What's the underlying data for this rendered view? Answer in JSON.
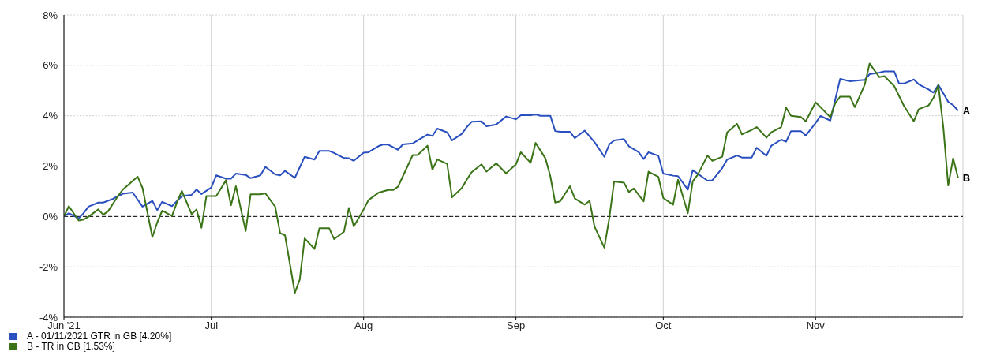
{
  "chart_data": {
    "type": "line",
    "legend": "bottom left",
    "grid": true,
    "line_style": "solid",
    "ylim": [
      -4,
      8
    ],
    "yticks": [
      {
        "value": -4,
        "label": "-4%"
      },
      {
        "value": -2,
        "label": "-2%"
      },
      {
        "value": 0,
        "label": "0%"
      },
      {
        "value": 2,
        "label": "2%"
      },
      {
        "value": 4,
        "label": "4%"
      },
      {
        "value": 6,
        "label": "6%"
      },
      {
        "value": 8,
        "label": "8%"
      }
    ],
    "xlim": [
      "2021-06-01",
      "2021-12-01"
    ],
    "xticks": [
      {
        "value": "2021-06-01",
        "label": "Jun '21"
      },
      {
        "value": "2021-07-01",
        "label": "Jul"
      },
      {
        "value": "2021-08-01",
        "label": "Aug"
      },
      {
        "value": "2021-09-01",
        "label": "Sep"
      },
      {
        "value": "2021-10-01",
        "label": "Oct"
      },
      {
        "value": "2021-11-01",
        "label": "Nov"
      }
    ],
    "ref_lines": [
      {
        "axis": "y",
        "value": 0,
        "color": "#000000",
        "line_style": "dashed"
      }
    ],
    "annotations": [
      {
        "text": "A",
        "x": "2021-11-30",
        "y": 4.2
      },
      {
        "text": "B",
        "x": "2021-11-30",
        "y": 1.53
      }
    ],
    "series": [
      {
        "name": "A - 01/11/2021 GTR in GB [4.20%]",
        "color": "#2a4fbf",
        "x": [
          "2021-06-01",
          "2021-06-02",
          "2021-06-04",
          "2021-06-05",
          "2021-06-06",
          "2021-06-08",
          "2021-06-09",
          "2021-06-11",
          "2021-06-12",
          "2021-06-13",
          "2021-06-15",
          "2021-06-17",
          "2021-06-19",
          "2021-06-20",
          "2021-06-21",
          "2021-06-23",
          "2021-06-25",
          "2021-06-27",
          "2021-06-28",
          "2021-06-29",
          "2021-07-01",
          "2021-07-02",
          "2021-07-04",
          "2021-07-05",
          "2021-07-06",
          "2021-07-08",
          "2021-07-09",
          "2021-07-11",
          "2021-07-12",
          "2021-07-14",
          "2021-07-15",
          "2021-07-16",
          "2021-07-18",
          "2021-07-20",
          "2021-07-22",
          "2021-07-23",
          "2021-07-25",
          "2021-07-26",
          "2021-07-28",
          "2021-07-29",
          "2021-07-30",
          "2021-08-01",
          "2021-08-02",
          "2021-08-04",
          "2021-08-05",
          "2021-08-06",
          "2021-08-08",
          "2021-08-09",
          "2021-08-11",
          "2021-08-12",
          "2021-08-14",
          "2021-08-15",
          "2021-08-16",
          "2021-08-18",
          "2021-08-19",
          "2021-08-21",
          "2021-08-22",
          "2021-08-23",
          "2021-08-25",
          "2021-08-26",
          "2021-08-28",
          "2021-08-30",
          "2021-09-01",
          "2021-09-02",
          "2021-09-04",
          "2021-09-05",
          "2021-09-06",
          "2021-09-08",
          "2021-09-09",
          "2021-09-10",
          "2021-09-12",
          "2021-09-13",
          "2021-09-15",
          "2021-09-16",
          "2021-09-17",
          "2021-09-19",
          "2021-09-20",
          "2021-09-21",
          "2021-09-23",
          "2021-09-24",
          "2021-09-26",
          "2021-09-27",
          "2021-09-28",
          "2021-09-30",
          "2021-10-01",
          "2021-10-03",
          "2021-10-04",
          "2021-10-06",
          "2021-10-07",
          "2021-10-08",
          "2021-10-10",
          "2021-10-11",
          "2021-10-13",
          "2021-10-14",
          "2021-10-16",
          "2021-10-17",
          "2021-10-19",
          "2021-10-20",
          "2021-10-22",
          "2021-10-23",
          "2021-10-25",
          "2021-10-26",
          "2021-10-27",
          "2021-10-29",
          "2021-10-30",
          "2021-11-01",
          "2021-11-02",
          "2021-11-04",
          "2021-11-06",
          "2021-11-08",
          "2021-11-10",
          "2021-11-11",
          "2021-11-12",
          "2021-11-14",
          "2021-11-15",
          "2021-11-17",
          "2021-11-18",
          "2021-11-19",
          "2021-11-21",
          "2021-11-22",
          "2021-11-24",
          "2021-11-25",
          "2021-11-26",
          "2021-11-28",
          "2021-11-29",
          "2021-11-30"
        ],
        "values": [
          0,
          0.13,
          -0.08,
          0.13,
          0.39,
          0.55,
          0.55,
          0.7,
          0.81,
          0.9,
          0.95,
          0.39,
          0.62,
          0.25,
          0.58,
          0.41,
          0.81,
          0.86,
          1.07,
          0.89,
          1.15,
          1.63,
          1.5,
          1.5,
          1.7,
          1.65,
          1.52,
          1.63,
          1.97,
          1.67,
          1.63,
          1.81,
          1.53,
          2.37,
          2.26,
          2.6,
          2.6,
          2.52,
          2.32,
          2.31,
          2.21,
          2.53,
          2.55,
          2.79,
          2.86,
          2.85,
          2.65,
          2.86,
          2.9,
          3.02,
          3.25,
          3.2,
          3.49,
          3.34,
          3.02,
          3.28,
          3.55,
          3.76,
          3.78,
          3.58,
          3.65,
          3.97,
          3.86,
          4.02,
          4.02,
          4.05,
          4.0,
          4.0,
          3.39,
          3.36,
          3.36,
          3.11,
          3.41,
          3.18,
          2.95,
          2.37,
          2.86,
          3.02,
          3.07,
          2.79,
          2.55,
          2.28,
          2.55,
          2.41,
          1.7,
          1.62,
          1.6,
          1.07,
          1.84,
          1.7,
          1.42,
          1.44,
          1.92,
          2.26,
          2.42,
          2.34,
          2.34,
          2.73,
          2.41,
          2.81,
          3.05,
          2.97,
          3.39,
          3.39,
          3.21,
          3.71,
          3.99,
          3.81,
          5.46,
          5.37,
          5.41,
          5.42,
          5.65,
          5.71,
          5.76,
          5.76,
          5.28,
          5.28,
          5.44,
          5.25,
          5.04,
          4.92,
          5.23,
          4.55,
          4.42,
          4.2
        ]
      },
      {
        "name": "B - TR in GB [1.53%]",
        "color": "#3a7417",
        "x": [
          "2021-06-01",
          "2021-06-02",
          "2021-06-04",
          "2021-06-05",
          "2021-06-06",
          "2021-06-08",
          "2021-06-09",
          "2021-06-10",
          "2021-06-12",
          "2021-06-13",
          "2021-06-15",
          "2021-06-16",
          "2021-06-17",
          "2021-06-19",
          "2021-06-20",
          "2021-06-21",
          "2021-06-23",
          "2021-06-24",
          "2021-06-25",
          "2021-06-27",
          "2021-06-28",
          "2021-06-29",
          "2021-06-30",
          "2021-07-02",
          "2021-07-04",
          "2021-07-05",
          "2021-07-06",
          "2021-07-08",
          "2021-07-09",
          "2021-07-11",
          "2021-07-12",
          "2021-07-14",
          "2021-07-15",
          "2021-07-16",
          "2021-07-18",
          "2021-07-19",
          "2021-07-20",
          "2021-07-22",
          "2021-07-23",
          "2021-07-25",
          "2021-07-26",
          "2021-07-28",
          "2021-07-29",
          "2021-07-30",
          "2021-08-01",
          "2021-08-02",
          "2021-08-04",
          "2021-08-06",
          "2021-08-07",
          "2021-08-08",
          "2021-08-09",
          "2021-08-11",
          "2021-08-12",
          "2021-08-14",
          "2021-08-15",
          "2021-08-16",
          "2021-08-18",
          "2021-08-19",
          "2021-08-21",
          "2021-08-22",
          "2021-08-23",
          "2021-08-25",
          "2021-08-26",
          "2021-08-28",
          "2021-08-30",
          "2021-09-01",
          "2021-09-02",
          "2021-09-04",
          "2021-09-05",
          "2021-09-07",
          "2021-09-08",
          "2021-09-09",
          "2021-09-10",
          "2021-09-12",
          "2021-09-13",
          "2021-09-15",
          "2021-09-16",
          "2021-09-17",
          "2021-09-19",
          "2021-09-20",
          "2021-09-21",
          "2021-09-23",
          "2021-09-24",
          "2021-09-25",
          "2021-09-27",
          "2021-09-28",
          "2021-09-30",
          "2021-10-01",
          "2021-10-03",
          "2021-10-04",
          "2021-10-06",
          "2021-10-07",
          "2021-10-08",
          "2021-10-10",
          "2021-10-11",
          "2021-10-13",
          "2021-10-14",
          "2021-10-16",
          "2021-10-17",
          "2021-10-19",
          "2021-10-20",
          "2021-10-22",
          "2021-10-23",
          "2021-10-25",
          "2021-10-26",
          "2021-10-27",
          "2021-10-29",
          "2021-10-30",
          "2021-11-01",
          "2021-11-02",
          "2021-11-04",
          "2021-11-05",
          "2021-11-06",
          "2021-11-08",
          "2021-11-09",
          "2021-11-11",
          "2021-11-12",
          "2021-11-14",
          "2021-11-15",
          "2021-11-17",
          "2021-11-19",
          "2021-11-21",
          "2021-11-22",
          "2021-11-24",
          "2021-11-25",
          "2021-11-26",
          "2021-11-27",
          "2021-11-28",
          "2021-11-29",
          "2021-11-30"
        ],
        "values": [
          0,
          0.41,
          -0.16,
          -0.12,
          -0.01,
          0.28,
          0.07,
          0.21,
          0.81,
          1.07,
          1.41,
          1.58,
          1.13,
          -0.82,
          -0.24,
          0.23,
          0.02,
          0.55,
          1.02,
          0.09,
          0.28,
          -0.45,
          0.81,
          0.81,
          1.44,
          0.44,
          1.2,
          -0.58,
          0.88,
          0.88,
          0.92,
          0.39,
          -0.66,
          -0.75,
          -3.03,
          -2.51,
          -0.87,
          -1.29,
          -0.47,
          -0.47,
          -0.9,
          -0.61,
          0.34,
          -0.4,
          0.28,
          0.65,
          0.94,
          1.05,
          1.05,
          1.18,
          1.6,
          2.44,
          2.44,
          2.81,
          1.86,
          2.26,
          2.09,
          0.76,
          1.13,
          1.46,
          1.76,
          2.07,
          1.78,
          2.11,
          1.71,
          2.07,
          2.55,
          2.13,
          2.92,
          2.31,
          1.6,
          0.55,
          0.6,
          1.2,
          0.71,
          0.47,
          0.62,
          -0.4,
          -1.24,
          -0.08,
          1.39,
          1.34,
          0.97,
          1.11,
          0.6,
          1.78,
          1.57,
          0.73,
          0.47,
          1.46,
          0.13,
          1.39,
          1.65,
          2.42,
          2.21,
          2.37,
          3.34,
          3.68,
          3.26,
          3.44,
          3.55,
          3.13,
          3.34,
          3.55,
          4.32,
          4.0,
          3.95,
          3.78,
          4.53,
          4.34,
          3.94,
          4.49,
          4.76,
          4.76,
          4.34,
          5.23,
          6.07,
          5.53,
          5.57,
          5.18,
          4.39,
          3.78,
          4.26,
          4.41,
          4.71,
          5.21,
          3.55,
          1.23,
          2.31,
          1.53
        ]
      }
    ]
  }
}
